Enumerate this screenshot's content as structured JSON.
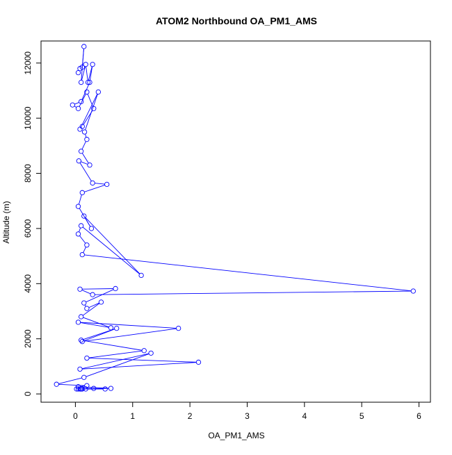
{
  "chart_data": {
    "type": "line",
    "title": "ATOM2 Northbound OA_PM1_AMS",
    "xlabel": "OA_PM1_AMS",
    "ylabel": "Altitude (m)",
    "xlim": [
      -0.6,
      6.2
    ],
    "ylim": [
      -300,
      12800
    ],
    "xticks": [
      0,
      1,
      2,
      3,
      4,
      5,
      6
    ],
    "yticks": [
      0,
      2000,
      4000,
      6000,
      8000,
      10000,
      12000
    ],
    "grid": false,
    "series_color": "#0000ff",
    "series": [
      {
        "marker": "open-circle",
        "x": [
          0.05,
          0.08,
          0.12,
          0.15,
          0.1,
          0.18,
          0.22,
          0.3,
          0.25,
          0.1,
          -0.05,
          0.05,
          0.2,
          0.32,
          0.12,
          0.08,
          0.4,
          0.16,
          0.2,
          0.1,
          0.25,
          0.06,
          0.3,
          0.55,
          0.12,
          0.05,
          0.28,
          0.15,
          1.15,
          0.1,
          0.05,
          0.2,
          0.12,
          5.9,
          0.3,
          0.08,
          0.7,
          0.15,
          0.2,
          0.45,
          0.1,
          0.62,
          0.05,
          1.8,
          0.12,
          0.72,
          0.1,
          1.2,
          0.2,
          2.15,
          0.08,
          1.32,
          0.15,
          -0.33,
          0.2,
          0.05,
          0.62,
          0.1,
          0.32,
          0.18,
          0.52,
          0.05,
          0.12,
          0.1,
          0.08,
          0.02
        ],
        "y": [
          11650,
          11800,
          11850,
          12600,
          11300,
          11950,
          11300,
          11950,
          11300,
          10600,
          10480,
          10350,
          10950,
          10350,
          9700,
          9600,
          10950,
          9500,
          9230,
          8800,
          8300,
          8450,
          7650,
          7600,
          7300,
          6800,
          6000,
          6450,
          4300,
          6100,
          5800,
          5400,
          5050,
          3730,
          3600,
          3800,
          3820,
          3300,
          3100,
          3330,
          2800,
          2400,
          2600,
          2380,
          1900,
          2380,
          1950,
          1570,
          1300,
          1150,
          900,
          1480,
          600,
          350,
          300,
          260,
          200,
          180,
          200,
          180,
          180,
          180,
          180,
          180,
          180,
          180
        ]
      }
    ]
  }
}
